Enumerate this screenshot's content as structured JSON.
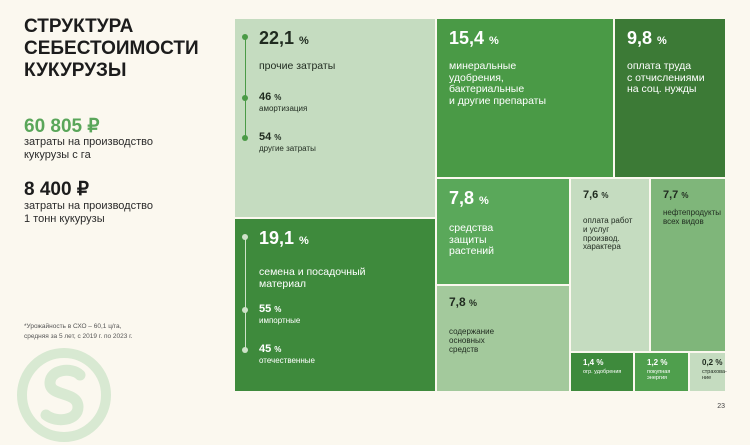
{
  "title": "СТРУКТУРА\nСЕБЕСТОИМОСТИ\nКУКУРУЗЫ",
  "kpis": [
    {
      "value": "60 805 ₽",
      "desc": "затраты на производство\nкукурузы с га",
      "color": "#5aa65a"
    },
    {
      "value": "8 400 ₽",
      "desc": "затраты на производство\n1 тонн кукурузы",
      "color": "#1c1c1c"
    }
  ],
  "footnote": "*Урожайность в СХО – 60,1 ц/га,\nсредняя за 5 лет, с 2019 г. по 2023 г.",
  "page_number": "23",
  "chart_data": {
    "type": "treemap",
    "unit": "%",
    "items": [
      {
        "value": "22,1",
        "label": "прочие затраты",
        "color": "#c5dcc0",
        "subitems": [
          {
            "value": "46",
            "label": "амортизация"
          },
          {
            "value": "54",
            "label": "другие затраты"
          }
        ]
      },
      {
        "value": "19,1",
        "label": "семена и посадочный\nматериал",
        "color": "#3e8a3c",
        "subitems": [
          {
            "value": "55",
            "label": "импортные"
          },
          {
            "value": "45",
            "label": "отечественные"
          }
        ]
      },
      {
        "value": "15,4",
        "label": "минеральные\nудобрения,\nбактериальные\nи другие препараты",
        "color": "#4a9a46"
      },
      {
        "value": "9,8",
        "label": "оплата труда\nс отчислениями\nна соц. нужды",
        "color": "#3c7a36"
      },
      {
        "value": "7,8",
        "label": "средства\nзащиты\nрастений",
        "color": "#5aa85a"
      },
      {
        "value": "7,8",
        "label": "содержание\nосновных\nсредств",
        "color": "#a3c99c"
      },
      {
        "value": "7,6",
        "label": "оплата работ\nи услуг\nпроизвод.\nхарактера",
        "color": "#c5dcc0"
      },
      {
        "value": "7,7",
        "label": "нефтепродукты\nвсех видов",
        "color": "#7fb67a"
      },
      {
        "value": "1,4",
        "label": "огр. удобрения",
        "color": "#3e8a3c"
      },
      {
        "value": "1,2",
        "label": "покупная\nэнергия",
        "color": "#4f9f4d"
      },
      {
        "value": "0,2",
        "label": "страхова-\nние",
        "color": "#c5dcc0"
      }
    ]
  }
}
